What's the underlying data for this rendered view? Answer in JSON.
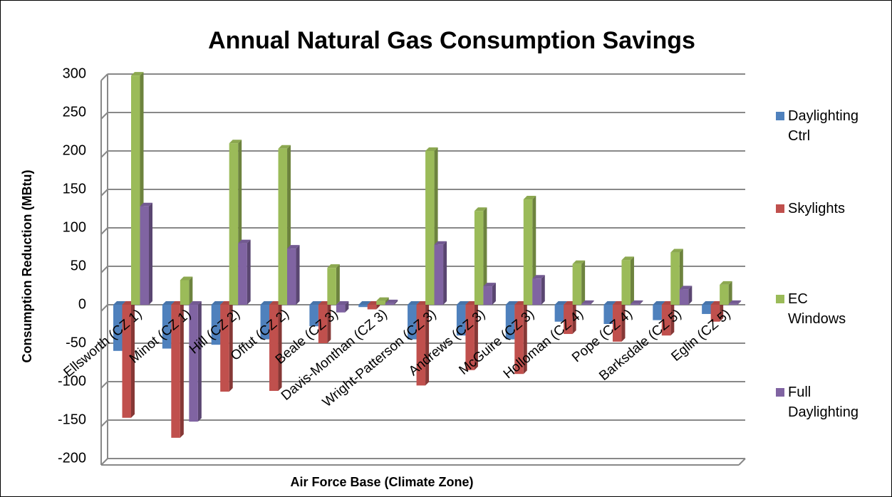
{
  "chart_data": {
    "type": "bar",
    "title": "Annual Natural Gas Consumption Savings",
    "x_label": "Air Force Base (Climate Zone)",
    "y_label": "Consumption Reduction (MBtu)",
    "categories": [
      "Ellsworth (CZ 1)",
      "Minot (CZ 1)",
      "Hill (CZ 2)",
      "Offut (CZ 2)",
      "Beale (CZ 3)",
      "Davis-Monthan (CZ 3)",
      "Wright-Patterson (CZ 3)",
      "Andrews (CZ 3)",
      "McGuire (CZ 3)",
      "Holloman (CZ 4)",
      "Pope (CZ 4)",
      "Barksdale (CZ 5)",
      "Eglin (CZ 5)"
    ],
    "series": [
      {
        "name": "Daylighting Ctrl",
        "color": "#4f81bd",
        "values": [
          -60,
          -57,
          -52,
          -45,
          -28,
          -3,
          -45,
          -40,
          -45,
          -22,
          -25,
          -20,
          -12
        ]
      },
      {
        "name": "Skylights",
        "color": "#c0504d",
        "values": [
          -147,
          -173,
          -113,
          -112,
          -50,
          -6,
          -105,
          -85,
          -90,
          -38,
          -48,
          -40,
          -22
        ]
      },
      {
        "name": "EC Windows",
        "color": "#9bbb59",
        "values": [
          298,
          32,
          210,
          203,
          48,
          5,
          200,
          122,
          137,
          53,
          58,
          68,
          26
        ]
      },
      {
        "name": "Full Daylighting",
        "color": "#8064a2",
        "values": [
          128,
          -152,
          80,
          73,
          -10,
          2,
          78,
          24,
          34,
          1,
          1,
          20,
          1
        ]
      }
    ],
    "ylim": [
      -200,
      300
    ],
    "yticks": [
      -200,
      -150,
      -100,
      -50,
      0,
      50,
      100,
      150,
      200,
      250,
      300
    ],
    "grid": true,
    "legend": "right"
  }
}
